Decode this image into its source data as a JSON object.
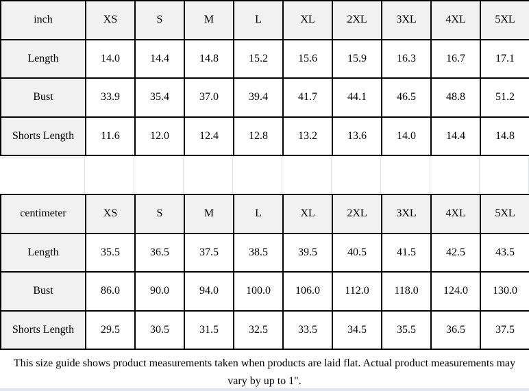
{
  "colors": {
    "header_bg": "#f1f1f1",
    "border": "#000000",
    "faint_gridline": "#d9e2ee",
    "background": "#ffffff",
    "text": "#000000"
  },
  "tables": [
    {
      "unit": "inch",
      "sizes": [
        "XS",
        "S",
        "M",
        "L",
        "XL",
        "2XL",
        "3XL",
        "4XL",
        "5XL"
      ],
      "rows": [
        {
          "label": "Length",
          "values": [
            "14.0",
            "14.4",
            "14.8",
            "15.2",
            "15.6",
            "15.9",
            "16.3",
            "16.7",
            "17.1"
          ]
        },
        {
          "label": "Bust",
          "values": [
            "33.9",
            "35.4",
            "37.0",
            "39.4",
            "41.7",
            "44.1",
            "46.5",
            "48.8",
            "51.2"
          ]
        },
        {
          "label": "Shorts Length",
          "values": [
            "11.6",
            "12.0",
            "12.4",
            "12.8",
            "13.2",
            "13.6",
            "14.0",
            "14.4",
            "14.8"
          ]
        }
      ]
    },
    {
      "unit": "centimeter",
      "sizes": [
        "XS",
        "S",
        "M",
        "L",
        "XL",
        "2XL",
        "3XL",
        "4XL",
        "5XL"
      ],
      "rows": [
        {
          "label": "Length",
          "values": [
            "35.5",
            "36.5",
            "37.5",
            "38.5",
            "39.5",
            "40.5",
            "41.5",
            "42.5",
            "43.5"
          ]
        },
        {
          "label": "Bust",
          "values": [
            "86.0",
            "90.0",
            "94.0",
            "100.0",
            "106.0",
            "112.0",
            "118.0",
            "124.0",
            "130.0"
          ]
        },
        {
          "label": "Shorts Length",
          "values": [
            "29.5",
            "30.5",
            "31.5",
            "32.5",
            "33.5",
            "34.5",
            "35.5",
            "36.5",
            "37.5"
          ]
        }
      ]
    }
  ],
  "footer": {
    "note": "This size guide shows product measurements taken when products are laid flat. Actual product measurements may vary by up to 1\"."
  }
}
